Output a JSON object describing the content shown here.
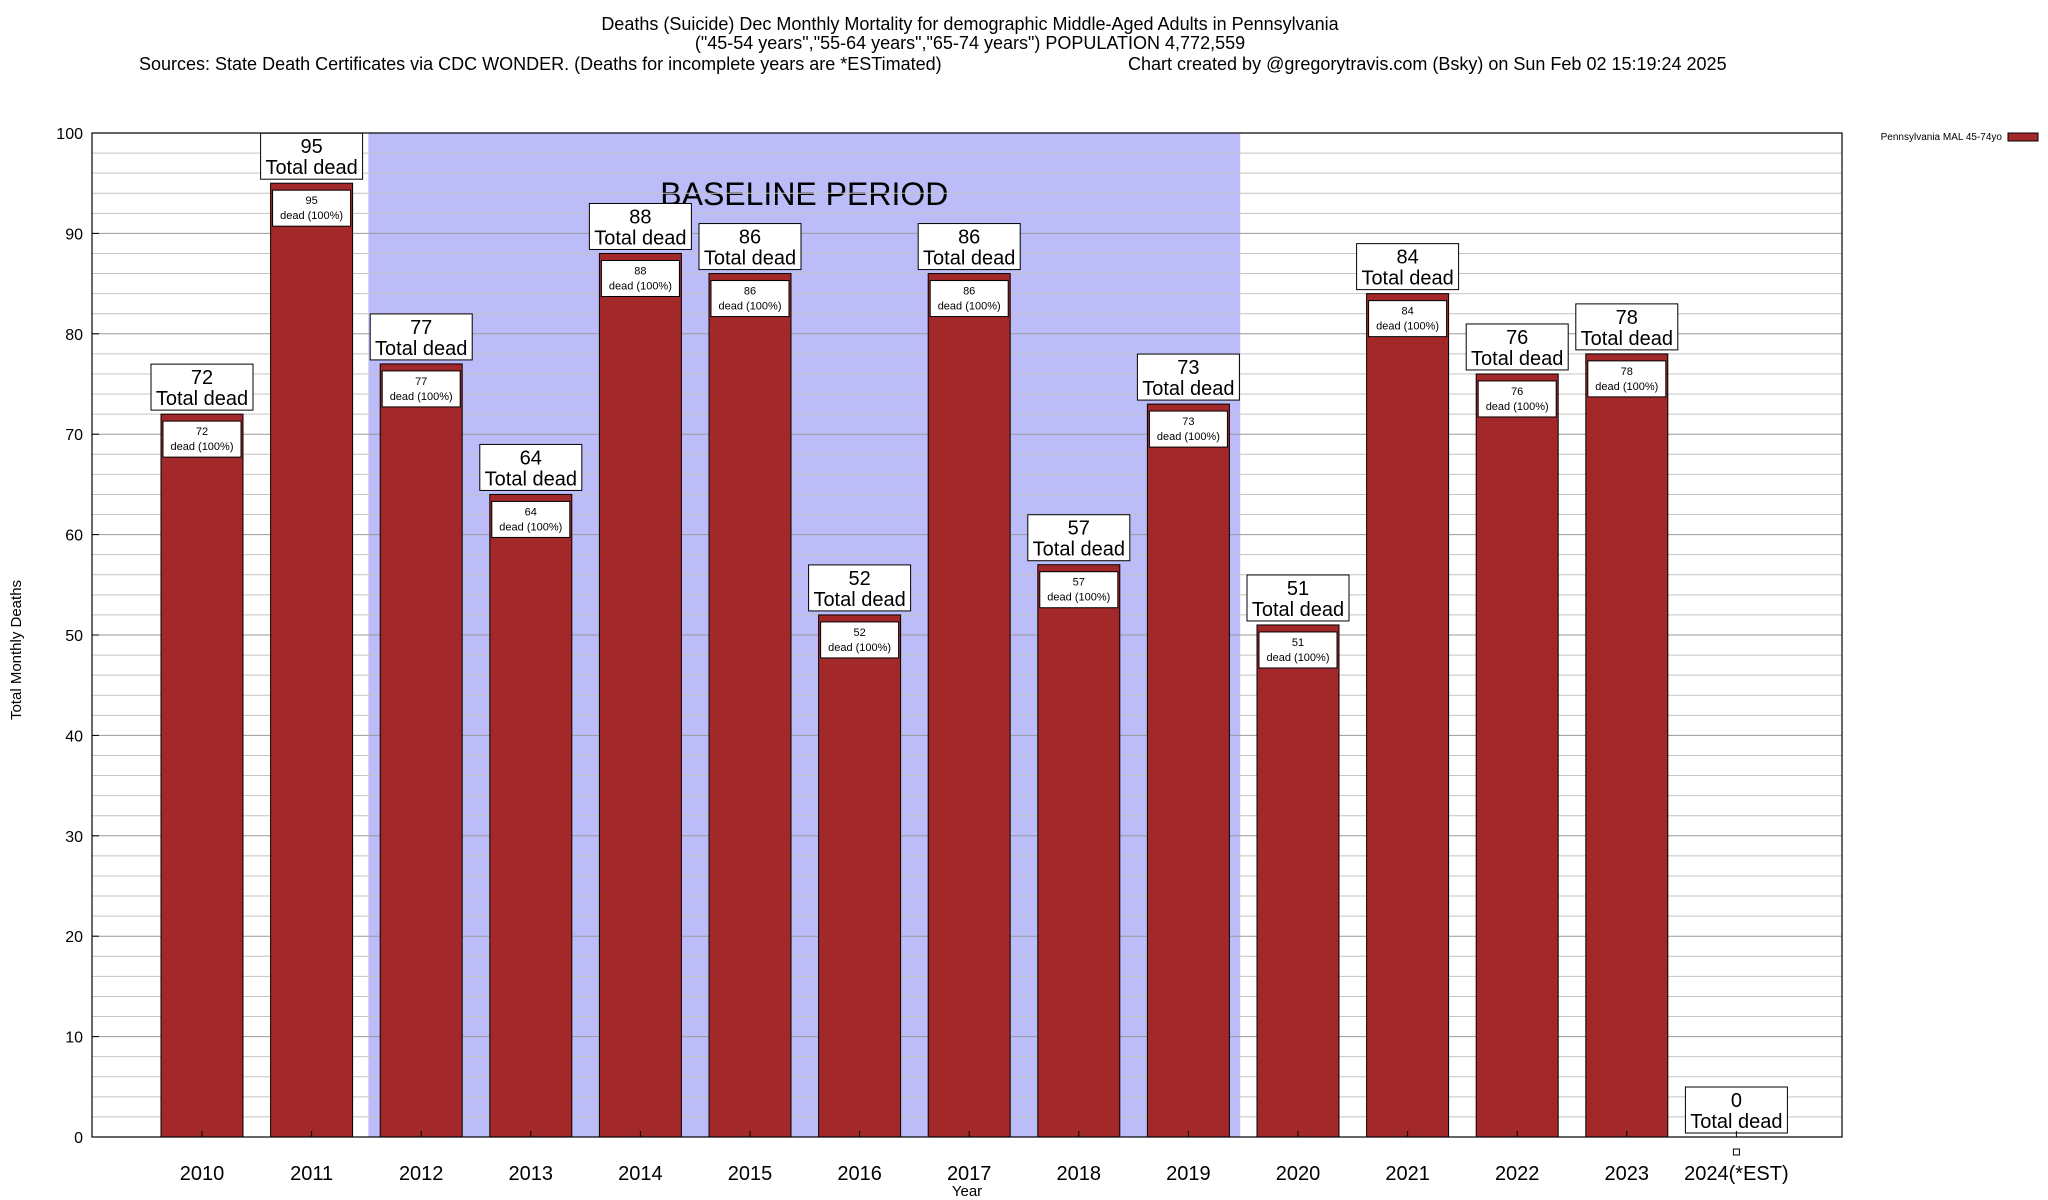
{
  "chart_data": {
    "type": "bar",
    "title_line1": "Deaths (Suicide) Dec Monthly Mortality for demographic Middle-Aged Adults in Pennsylvania",
    "title_line2": "(\"45-54 years\",\"55-64 years\",\"65-74 years\") POPULATION 4,772,559",
    "sources": "Sources: State Death Certificates via CDC WONDER. (Deaths for incomplete years are *ESTimated)",
    "credit": "Chart created by @gregorytravis.com (Bsky) on Sun Feb 02 15:19:24 2025",
    "xlabel": "Year",
    "ylabel": "Total Monthly Deaths",
    "ylim": [
      0,
      100
    ],
    "yticks": [
      0,
      10,
      20,
      30,
      40,
      50,
      60,
      70,
      80,
      90,
      100
    ],
    "grid": true,
    "legend_position": "top-right",
    "categories": [
      "2010",
      "2011",
      "2012",
      "2013",
      "2014",
      "2015",
      "2016",
      "2017",
      "2018",
      "2019",
      "2020",
      "2021",
      "2022",
      "2023",
      "2024(*EST)"
    ],
    "series": [
      {
        "name": "Pennsylvania MAL 45-74yo",
        "color": "#a3282a",
        "values": [
          72,
          95,
          77,
          64,
          88,
          86,
          52,
          86,
          57,
          73,
          51,
          84,
          76,
          78,
          0
        ]
      }
    ],
    "total_label_suffix": "Total dead",
    "inner_label_suffix": "dead (100%)",
    "baseline": {
      "label": "BASELINE PERIOD",
      "from": "2012",
      "to": "2019",
      "color": "#bcbcf8"
    }
  }
}
